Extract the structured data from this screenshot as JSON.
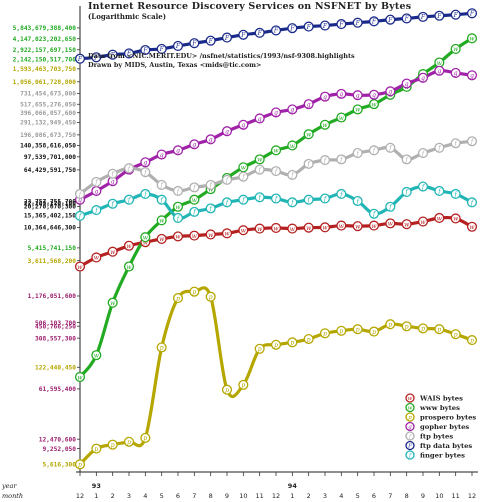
{
  "header": {
    "title": "Internet Resource Discovery Services on NSFNET by Bytes",
    "subtitle": "(Logarithmic Scale)",
    "source": "Data from <NIC.MERIT.EDU> /nsfnet/statistics/1993/nsf-9308.highlights",
    "credit": "Drawn by MIDS, Austin, Texas <mids@tic.com>"
  },
  "chart_data": {
    "type": "line",
    "title": "Internet Resource Discovery Services on NSFNET by Bytes",
    "subtitle": "(Logarithmic Scale)",
    "xlabel": "",
    "ylabel": "",
    "y_scale": "log",
    "x_axis": {
      "row_labels": [
        "year",
        "month"
      ],
      "years": [
        {
          "label": "93",
          "at_index": 1
        },
        {
          "label": "94",
          "at_index": 13
        }
      ],
      "categories": [
        "12",
        "1",
        "2",
        "3",
        "4",
        "5",
        "6",
        "7",
        "8",
        "9",
        "10",
        "11",
        "12",
        "1",
        "2",
        "3",
        "4",
        "5",
        "6",
        "7",
        "8",
        "9",
        "10",
        "11",
        "12"
      ]
    },
    "y_ticks": [
      {
        "value": 5616300,
        "label": "5,616,300",
        "color": "#b5a600"
      },
      {
        "value": 9252050,
        "label": "9,252,050",
        "color": "#9b1e6e"
      },
      {
        "value": 12470600,
        "label": "12,470,600",
        "color": "#9b1e6e"
      },
      {
        "value": 61595400,
        "label": "61,595,400",
        "color": "#9b1e6e"
      },
      {
        "value": 122440450,
        "label": "122,440,450",
        "color": "#b5a600"
      },
      {
        "value": 308557300,
        "label": "308,557,300",
        "color": "#9b1e6e"
      },
      {
        "value": 450766250,
        "label": "450,766,250",
        "color": "#9b1e6e"
      },
      {
        "value": 506103700,
        "label": "506,103,700",
        "color": "#9b1e6e"
      },
      {
        "value": 1176051600,
        "label": "1,176,051,600",
        "color": "#9b1e6e"
      },
      {
        "value": 3611568200,
        "label": "3,611,568,200",
        "color": "#b5a600"
      },
      {
        "value": 5415741150,
        "label": "5,415,741,150",
        "color": "#22aa22"
      },
      {
        "value": 10364646300,
        "label": "10,364,646,300",
        "color": "#111111"
      },
      {
        "value": 15365402150,
        "label": "15,365,402,150",
        "color": "#111111"
      },
      {
        "value": 20270670300,
        "label": "20,270,670,300",
        "color": "#111111"
      },
      {
        "value": 22269270100,
        "label": "22,269,270,100",
        "color": "#111111"
      },
      {
        "value": 23757755700,
        "label": "23,757,755,700",
        "color": "#111111"
      },
      {
        "value": 64429591750,
        "label": "64,429,591,750",
        "color": "#111111"
      },
      {
        "value": 97539701000,
        "label": "97,539,701,000",
        "color": "#111111"
      },
      {
        "value": 140358616050,
        "label": "140,358,616,050",
        "color": "#111111"
      },
      {
        "value": 196086673750,
        "label": "196,086,673,750",
        "color": "#9a9a9a"
      },
      {
        "value": 291132949450,
        "label": "291,132,949,450",
        "color": "#9a9a9a"
      },
      {
        "value": 396066057600,
        "label": "396,066,057,600",
        "color": "#9a9a9a"
      },
      {
        "value": 517655276050,
        "label": "517,655,276,050",
        "color": "#9a9a9a"
      },
      {
        "value": 731454673000,
        "label": "731,454,673,000",
        "color": "#9a9a9a"
      },
      {
        "value": 1056061728800,
        "label": "1,056,061,728,800",
        "color": "#b5a600"
      },
      {
        "value": 1593463703750,
        "label": "1,593,463,703,750",
        "color": "#b5a600"
      },
      {
        "value": 2142150517700,
        "label": "2,142,150,517,700",
        "color": "#22aa22"
      },
      {
        "value": 2922157697150,
        "label": "2,922,157,697,150",
        "color": "#22aa22"
      },
      {
        "value": 4147023202650,
        "label": "4,147,023,202,650",
        "color": "#22aa22"
      },
      {
        "value": 5843679388400,
        "label": "5,843,679,388,400",
        "color": "#22aa22"
      }
    ],
    "legend_position": "bottom-right",
    "series": [
      {
        "name": "WAIS bytes",
        "color": "#b52020",
        "marker": "w",
        "values": [
          3000000000,
          4000000000,
          4800000000,
          5800000000,
          6500000000,
          7200000000,
          7800000000,
          8000000000,
          8300000000,
          8600000000,
          9500000000,
          10000000000,
          10200000000,
          10000000000,
          10300000000,
          10400000000,
          11000000000,
          10800000000,
          11000000000,
          11800000000,
          11500000000,
          12500000000,
          14000000000,
          13800000000,
          10600000000
        ]
      },
      {
        "name": "www bytes",
        "color": "#22aa22",
        "marker": "w",
        "values": [
          90000000,
          180000000,
          950000000,
          3000000000,
          7600000000,
          13000000000,
          20000000000,
          25000000000,
          35000000000,
          50000000000,
          70000000000,
          90000000000,
          120000000000,
          140000000000,
          200000000000,
          270000000000,
          340000000000,
          440000000000,
          520000000000,
          700000000000,
          900000000000,
          1350000000000,
          1950000000000,
          3000000000000,
          4200000000000
        ]
      },
      {
        "name": "prospero bytes",
        "color": "#b5a600",
        "marker": "p",
        "values": [
          5616300,
          9252050,
          10500000,
          11500000,
          13000000,
          230000000,
          1100000000,
          1350000000,
          1150000000,
          60000000,
          70000000,
          220000000,
          250000000,
          270000000,
          300000000,
          360000000,
          390000000,
          410000000,
          380000000,
          480000000,
          450000000,
          420000000,
          410000000,
          350000000,
          290000000
        ]
      },
      {
        "name": "gopher bytes",
        "color": "#a022a8",
        "marker": "g",
        "values": [
          25000000000,
          33000000000,
          45000000000,
          65000000000,
          82000000000,
          105000000000,
          120000000000,
          145000000000,
          170000000000,
          220000000000,
          270000000000,
          330000000000,
          400000000000,
          440000000000,
          520000000000,
          660000000000,
          720000000000,
          690000000000,
          700000000000,
          780000000000,
          1000000000000,
          1200000000000,
          1500000000000,
          1400000000000,
          1300000000000
        ]
      },
      {
        "name": "ftp bytes",
        "color": "#b0b0b0",
        "marker": "f",
        "values": [
          30000000000,
          44000000000,
          57000000000,
          68000000000,
          60000000000,
          40000000000,
          33000000000,
          37000000000,
          40000000000,
          47000000000,
          52000000000,
          65000000000,
          62000000000,
          55000000000,
          78000000000,
          88000000000,
          90000000000,
          110000000000,
          120000000000,
          130000000000,
          90000000000,
          110000000000,
          130000000000,
          150000000000,
          160000000000
        ]
      },
      {
        "name": "ftp data bytes",
        "color": "#1a2a8a",
        "marker": "F",
        "values": [
          2200000000000,
          2300000000000,
          2500000000000,
          2600000000000,
          2900000000000,
          3000000000000,
          3300000000000,
          3600000000000,
          3900000000000,
          4300000000000,
          4700000000000,
          5000000000000,
          5400000000000,
          5800000000000,
          6100000000000,
          6300000000000,
          6600000000000,
          6900000000000,
          7200000000000,
          7600000000000,
          7900000000000,
          8300000000000,
          8600000000000,
          8900000000000,
          9300000000000
        ]
      },
      {
        "name": "finger bytes",
        "color": "#22b5b5",
        "marker": "f",
        "values": [
          15000000000,
          18000000000,
          22000000000,
          25000000000,
          30000000000,
          25000000000,
          14000000000,
          17000000000,
          19000000000,
          23000000000,
          25000000000,
          27000000000,
          26000000000,
          23000000000,
          25000000000,
          26000000000,
          30000000000,
          24000000000,
          16000000000,
          20000000000,
          32000000000,
          38000000000,
          33000000000,
          30000000000,
          23000000000
        ]
      }
    ]
  }
}
